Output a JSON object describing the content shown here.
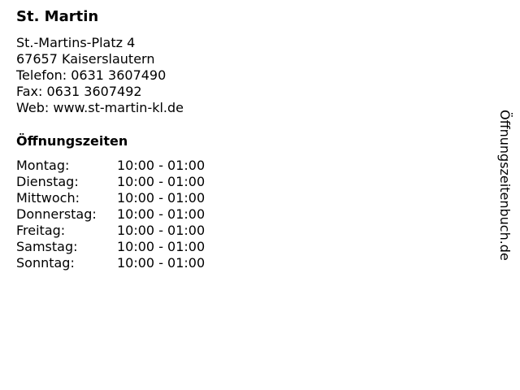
{
  "name": "St. Martin",
  "address": [
    "St.-Martins-Platz 4",
    "67657 Kaiserslautern",
    "Telefon: 0631 3607490",
    "Fax: 0631 3607492",
    "Web: www.st-martin-kl.de"
  ],
  "hours_title": "Öffnungszeiten",
  "hours": [
    {
      "day": "Montag:",
      "time": "10:00 - 01:00"
    },
    {
      "day": "Dienstag:",
      "time": "10:00 - 01:00"
    },
    {
      "day": "Mittwoch:",
      "time": "10:00 - 01:00"
    },
    {
      "day": "Donnerstag:",
      "time": "10:00 - 01:00"
    },
    {
      "day": "Freitag:",
      "time": "10:00 - 01:00"
    },
    {
      "day": "Samstag:",
      "time": "10:00 - 01:00"
    },
    {
      "day": "Sonntag:",
      "time": "10:00 - 01:00"
    }
  ],
  "watermark": "Öffnungszeitenbuch.de"
}
